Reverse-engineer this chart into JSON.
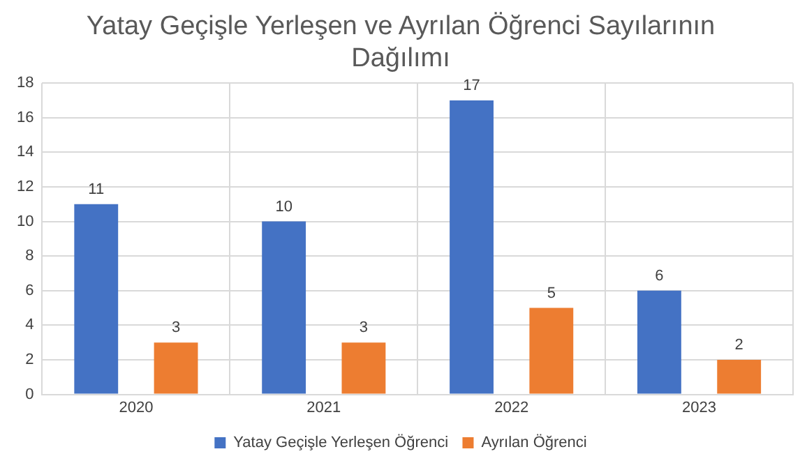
{
  "chart_data": {
    "type": "bar",
    "title": "Yatay Geçişle Yerleşen ve Ayrılan Öğrenci Sayılarının Dağılımı",
    "categories": [
      "2020",
      "2021",
      "2022",
      "2023"
    ],
    "series": [
      {
        "name": "Yatay Geçişle Yerleşen Öğrenci",
        "color": "#4472c4",
        "values": [
          11,
          10,
          17,
          6
        ]
      },
      {
        "name": "Ayrılan Öğrenci",
        "color": "#ed7d31",
        "values": [
          3,
          3,
          5,
          2
        ]
      }
    ],
    "ylim": [
      0,
      18
    ],
    "yticks": [
      0,
      2,
      4,
      6,
      8,
      10,
      12,
      14,
      16,
      18
    ],
    "grid": true,
    "legend": "bottom",
    "data_labels": true
  }
}
